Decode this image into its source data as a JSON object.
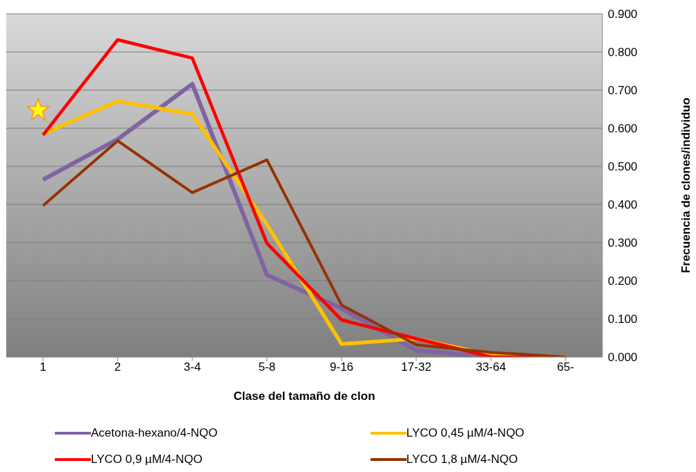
{
  "chart_data": {
    "type": "line",
    "xlabel": "Clase del tamaño de clon",
    "ylabel": "Frecuencia de clones/individuo",
    "categories": [
      "1",
      "2",
      "3-4",
      "5-8",
      "9-16",
      "17-32",
      "33-64",
      "65-"
    ],
    "series": [
      {
        "name": "Acetona-hexano/4-NQO",
        "color": "#8064a2",
        "values": [
          0.465,
          0.571,
          0.716,
          0.215,
          0.127,
          0.017,
          0,
          0
        ]
      },
      {
        "name": "LYCO 0,45 µM/4-NQO",
        "color": "#ffc000",
        "values": [
          0.585,
          0.671,
          0.637,
          0.347,
          0.034,
          0.048,
          0.005,
          0
        ]
      },
      {
        "name": "LYCO 0,9 µM/4-NQO",
        "color": "#ff0000",
        "values": [
          0.582,
          0.832,
          0.784,
          0.298,
          0.097,
          0.048,
          0,
          0
        ]
      },
      {
        "name": "LYCO 1,8 µM/4-NQO",
        "color": "#953200",
        "values": [
          0.397,
          0.567,
          0.431,
          0.517,
          0.136,
          0.032,
          0.012,
          0
        ]
      }
    ],
    "ylim": [
      0,
      0.9
    ],
    "yticks": [
      {
        "value": 0,
        "label": "0.000"
      },
      {
        "value": 0.1,
        "label": "0.100"
      },
      {
        "value": 0.2,
        "label": "0.200"
      },
      {
        "value": 0.3,
        "label": "0.300"
      },
      {
        "value": 0.4,
        "label": "0.400"
      },
      {
        "value": 0.5,
        "label": "0.500"
      },
      {
        "value": 0.6,
        "label": "0.600"
      },
      {
        "value": 0.7,
        "label": "0.700"
      },
      {
        "value": 0.8,
        "label": "0.800"
      },
      {
        "value": 0.9,
        "label": "0.900"
      }
    ],
    "grid": "y",
    "legend": "bottom",
    "marker": "none",
    "line_style": "solid"
  }
}
